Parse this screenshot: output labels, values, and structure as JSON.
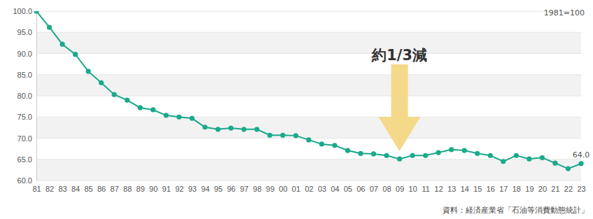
{
  "chart_data": {
    "type": "line",
    "subtitle": "1981=100",
    "source": "資料：経済産業省「石油等消費動態統計」",
    "categories": [
      "81",
      "82",
      "83",
      "84",
      "85",
      "86",
      "87",
      "88",
      "89",
      "90",
      "91",
      "92",
      "93",
      "94",
      "95",
      "96",
      "97",
      "98",
      "99",
      "00",
      "01",
      "02",
      "03",
      "04",
      "05",
      "06",
      "07",
      "08",
      "09",
      "10",
      "11",
      "12",
      "13",
      "14",
      "15",
      "16",
      "17",
      "18",
      "19",
      "20",
      "21",
      "22",
      "23"
    ],
    "values": [
      100,
      96.2,
      92.2,
      89.8,
      85.8,
      83.1,
      80.3,
      79.0,
      77.2,
      76.7,
      75.4,
      75.0,
      74.7,
      72.6,
      72.1,
      72.4,
      72.1,
      72.1,
      70.7,
      70.7,
      70.6,
      69.6,
      68.6,
      68.3,
      67.1,
      66.4,
      66.3,
      65.9,
      65.1,
      65.9,
      65.9,
      66.6,
      67.3,
      67.1,
      66.4,
      65.9,
      64.5,
      65.9,
      65.1,
      65.4,
      64.1,
      62.8,
      64.0
    ],
    "value_labels": [
      null,
      null,
      null,
      null,
      null,
      null,
      null,
      null,
      null,
      null,
      null,
      null,
      null,
      null,
      null,
      null,
      null,
      null,
      null,
      null,
      null,
      null,
      null,
      null,
      null,
      null,
      null,
      null,
      null,
      null,
      null,
      null,
      null,
      null,
      null,
      null,
      null,
      null,
      null,
      null,
      null,
      null,
      "64.0"
    ],
    "color": "#1ba98a",
    "marker": "circle",
    "ylim": [
      60,
      100
    ],
    "yticks": [
      {
        "value": 60,
        "label": "60.0"
      },
      {
        "value": 65,
        "label": "65.0"
      },
      {
        "value": 70,
        "label": "70.0"
      },
      {
        "value": 75,
        "label": "75.0"
      },
      {
        "value": 80,
        "label": "80.0"
      },
      {
        "value": 85,
        "label": "85.0"
      },
      {
        "value": 90,
        "label": "90.0"
      },
      {
        "value": 95,
        "label": "95.0"
      },
      {
        "value": 100,
        "label": "100.0"
      }
    ],
    "grid": true,
    "data_labels": true,
    "annotations": [
      {
        "text": "約1/3減",
        "x": "09"
      }
    ]
  }
}
